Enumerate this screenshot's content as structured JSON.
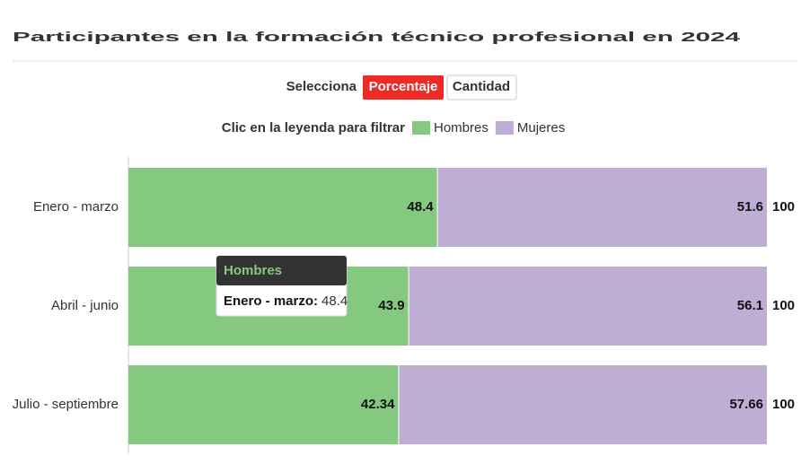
{
  "title": "Participantes en la formación técnico profesional en 2024",
  "controls": {
    "label": "Selecciona",
    "buttons": [
      "Porcentaje",
      "Cantidad"
    ]
  },
  "legend_hint": "Clic en la leyenda para filtrar",
  "chart_data": {
    "type": "bar",
    "orientation": "horizontal",
    "stacked": true,
    "categories": [
      "Enero - marzo",
      "Abril - junio",
      "Julio - septiembre"
    ],
    "series": [
      {
        "name": "Hombres",
        "color": "#85c880",
        "values": [
          48.4,
          43.9,
          42.34
        ]
      },
      {
        "name": "Mujeres",
        "color": "#bfaed4",
        "values": [
          51.6,
          56.1,
          57.66
        ]
      }
    ],
    "totals": [
      100,
      100,
      100
    ],
    "xlim": [
      0,
      100
    ],
    "grid": false
  },
  "tooltip": {
    "title": "Hombres",
    "label": "Enero - marzo:",
    "value": 48.4
  }
}
